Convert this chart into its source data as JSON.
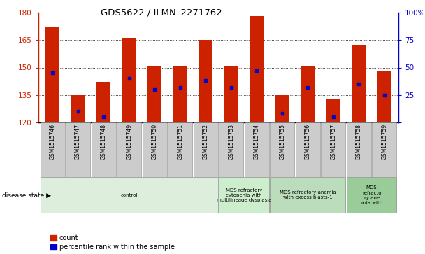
{
  "title": "GDS5622 / ILMN_2271762",
  "samples": [
    "GSM1515746",
    "GSM1515747",
    "GSM1515748",
    "GSM1515749",
    "GSM1515750",
    "GSM1515751",
    "GSM1515752",
    "GSM1515753",
    "GSM1515754",
    "GSM1515755",
    "GSM1515756",
    "GSM1515757",
    "GSM1515758",
    "GSM1515759"
  ],
  "counts": [
    172,
    135,
    142,
    166,
    151,
    151,
    165,
    151,
    178,
    135,
    151,
    133,
    162,
    148
  ],
  "percentile_ranks": [
    45,
    10,
    5,
    40,
    30,
    32,
    38,
    32,
    47,
    8,
    32,
    5,
    35,
    25
  ],
  "ymin": 120,
  "ymax": 180,
  "yticks": [
    120,
    135,
    150,
    165,
    180
  ],
  "y2ticks": [
    0,
    25,
    50,
    75,
    100
  ],
  "bar_color": "#cc2200",
  "marker_color": "#0000cc",
  "bg_color": "#ffffff",
  "disease_groups": [
    {
      "label": "control",
      "start": 0,
      "end": 7,
      "color": "#ddeedd"
    },
    {
      "label": "MDS refractory\ncytopenia with\nmultilineage dysplasia",
      "start": 7,
      "end": 9,
      "color": "#cceecc"
    },
    {
      "label": "MDS refractory anemia\nwith excess blasts-1",
      "start": 9,
      "end": 12,
      "color": "#bbddbb"
    },
    {
      "label": "MDS\nrefracto\nry ane\nmia with",
      "start": 12,
      "end": 14,
      "color": "#99cc99"
    }
  ],
  "legend_count_label": "count",
  "legend_percentile_label": "percentile rank within the sample",
  "disease_state_label": "disease state",
  "title_color": "#000000",
  "left_axis_color": "#cc2200",
  "right_axis_color": "#0000cc",
  "xtick_bg": "#cccccc"
}
